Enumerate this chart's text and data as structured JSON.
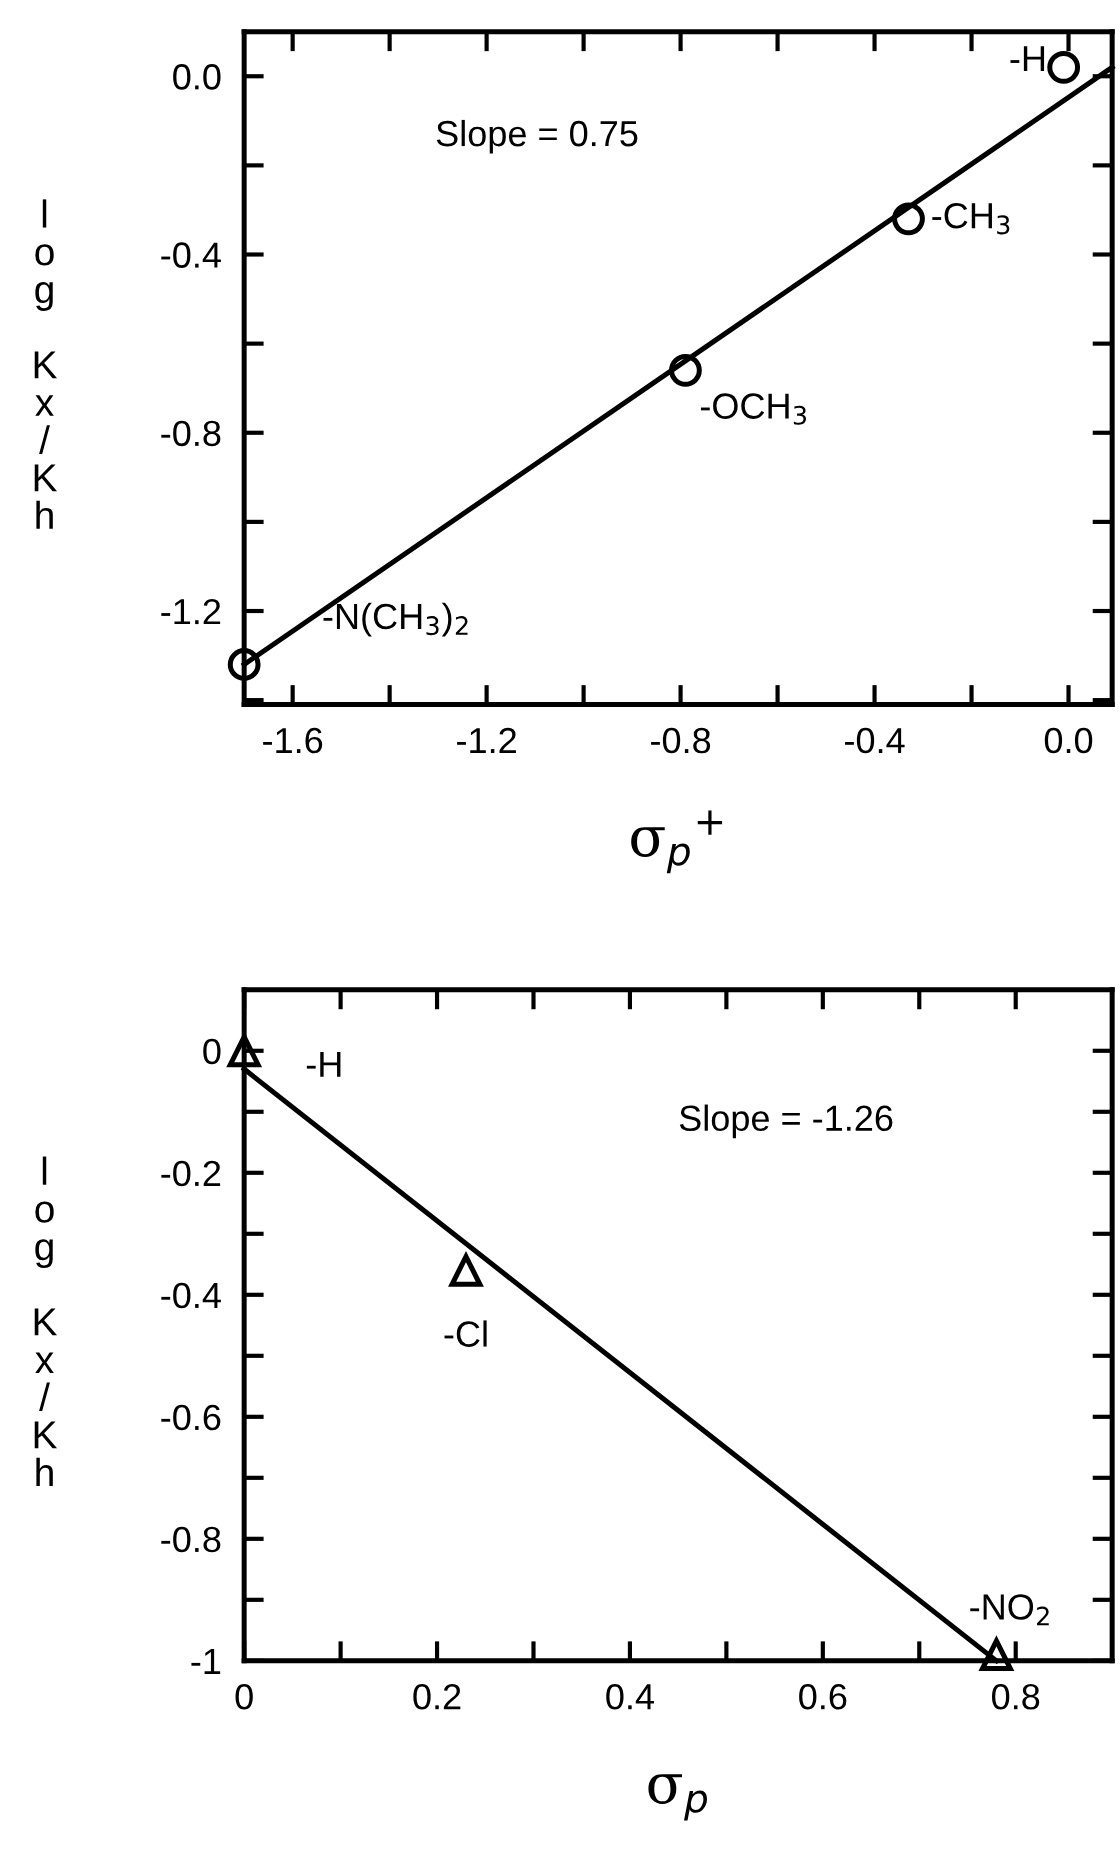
{
  "chart_data": [
    {
      "type": "scatter",
      "xlabel": "σ$_{p}$$^{+}$",
      "ylabel": "log Kx/Kh",
      "marker": "circle",
      "grid": false,
      "xlim": [
        -1.7,
        0.09
      ],
      "ylim": [
        -1.41,
        0.1
      ],
      "xticks": [
        -1.6,
        {
          "value": -1.4,
          "label": null
        },
        -1.2,
        {
          "value": -1.0,
          "label": null
        },
        -0.8,
        {
          "value": -0.6,
          "label": null
        },
        -0.4,
        {
          "value": -0.2,
          "label": null
        },
        {
          "value": 0,
          "label": "0.0"
        }
      ],
      "yticks": [
        {
          "value": -1.4,
          "label": null
        },
        -1.2,
        {
          "value": -1.0,
          "label": null
        },
        -0.8,
        {
          "value": -0.6,
          "label": null
        },
        -0.4,
        {
          "value": -0.2,
          "label": null
        },
        {
          "value": 0,
          "label": "0.0"
        }
      ],
      "series": [
        {
          "color": "#000000",
          "x": [
            -1.7,
            -0.79,
            -0.33,
            -0.01
          ],
          "values": [
            -1.32,
            -0.66,
            -0.32,
            0.02
          ]
        },
        {
          "type": "line",
          "color": "#000000",
          "marker": "none",
          "x": [
            -1.7,
            0.09
          ],
          "values": [
            -1.32,
            0.02
          ]
        }
      ],
      "annotations": [
        "Slope = 0.75",
        {
          "text": "-N(CH$_{3}$)$_{2}$",
          "x": -1.7,
          "y": -1.32
        },
        {
          "text": "-OCH$_{3}$",
          "x": -0.79,
          "y": -0.66
        },
        {
          "text": "-CH$_{3}$",
          "x": -0.33,
          "y": -0.32
        },
        {
          "text": "-H",
          "x": -0.01,
          "y": 0.02
        }
      ]
    },
    {
      "type": "scatter",
      "xlabel": "σ$_{p}$",
      "ylabel": "log Kx/Kh",
      "marker": "triangle",
      "grid": false,
      "xlim": [
        0,
        0.9
      ],
      "ylim": [
        -1,
        0.1
      ],
      "xticks": [
        0,
        {
          "value": 0.1,
          "label": null
        },
        0.2,
        {
          "value": 0.3,
          "label": null
        },
        0.4,
        {
          "value": 0.5,
          "label": null
        },
        0.6,
        {
          "value": 0.7,
          "label": null
        },
        0.8
      ],
      "yticks": [
        -1,
        {
          "value": -0.9,
          "label": null
        },
        -0.8,
        {
          "value": -0.7,
          "label": null
        },
        -0.6,
        {
          "value": -0.5,
          "label": null
        },
        -0.4,
        {
          "value": -0.3,
          "label": null
        },
        -0.2,
        {
          "value": -0.1,
          "label": null
        },
        0
      ],
      "series": [
        {
          "color": "#000000",
          "x": [
            0,
            0.23,
            0.78
          ],
          "values": [
            0.0,
            -0.36,
            -0.99
          ]
        },
        {
          "type": "line",
          "color": "#000000",
          "marker": "none",
          "x": [
            0,
            0.78
          ],
          "values": [
            -0.03,
            -1.0
          ]
        }
      ],
      "annotations": [
        "Slope = -1.26",
        {
          "text": "-H",
          "x": 0,
          "y": 0.0
        },
        {
          "text": "-Cl",
          "x": 0.23,
          "y": -0.36
        },
        {
          "text": "-NO$_{2}$",
          "x": 0.78,
          "y": -0.99
        }
      ]
    }
  ]
}
